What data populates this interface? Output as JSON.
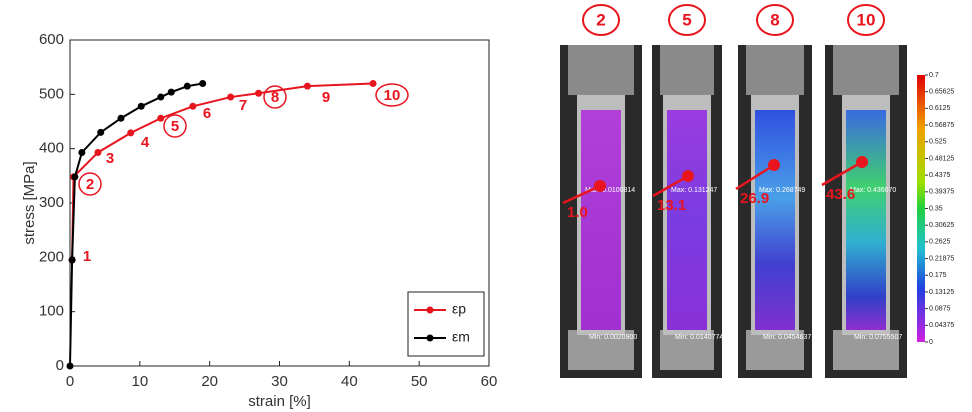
{
  "chart_data": {
    "type": "line",
    "xlabel": "strain [%]",
    "ylabel": "stress [MPa]",
    "xlim": [
      0,
      60
    ],
    "xticks": [
      0,
      10,
      20,
      30,
      40,
      50,
      60
    ],
    "ylim": [
      0,
      600
    ],
    "yticks": [
      0,
      100,
      200,
      300,
      400,
      500,
      600
    ],
    "legend": "lower right",
    "grid": false,
    "series": [
      {
        "name": "εp",
        "color": "#e8141e",
        "x": [
          0.3,
          0.5,
          4.0,
          8.7,
          13.0,
          17.6,
          23.0,
          27.0,
          34.0,
          43.4
        ],
        "values": [
          195,
          348,
          393,
          429,
          456,
          478,
          495,
          502,
          515,
          520
        ]
      },
      {
        "name": "εm",
        "color": "#000000",
        "x": [
          0,
          0.3,
          0.7,
          1.7,
          4.4,
          7.3,
          10.2,
          13.0,
          14.5,
          16.8,
          19.0
        ],
        "values": [
          0,
          195,
          348,
          393,
          430,
          456,
          478,
          495,
          504,
          515,
          520
        ]
      }
    ],
    "annotations": [
      "1",
      "2",
      "3",
      "4",
      "5",
      "6",
      "7",
      "8",
      "9",
      "10"
    ]
  },
  "panels": [
    {
      "label": "2",
      "value": "1.0",
      "max": "Max: 0.0100814",
      "min": "Min: 0.0020900"
    },
    {
      "label": "5",
      "value": "13.1",
      "max": "Max: 0.131247",
      "min": "Min: 0.0140774"
    },
    {
      "label": "8",
      "value": "26.9",
      "max": "Max: 0.268749",
      "min": "Min: 0.0454637"
    },
    {
      "label": "10",
      "value": "43.6",
      "max": "Max: 0.436070",
      "min": "Min: 0.0755507"
    }
  ],
  "colorbar": {
    "ticks": [
      0.7,
      0.65625,
      0.6125,
      0.56875,
      0.525,
      0.48125,
      0.4375,
      0.39375,
      0.35,
      0.30625,
      0.2625,
      0.21875,
      0.175,
      0.13125,
      0.0875,
      0.04375,
      0
    ]
  }
}
